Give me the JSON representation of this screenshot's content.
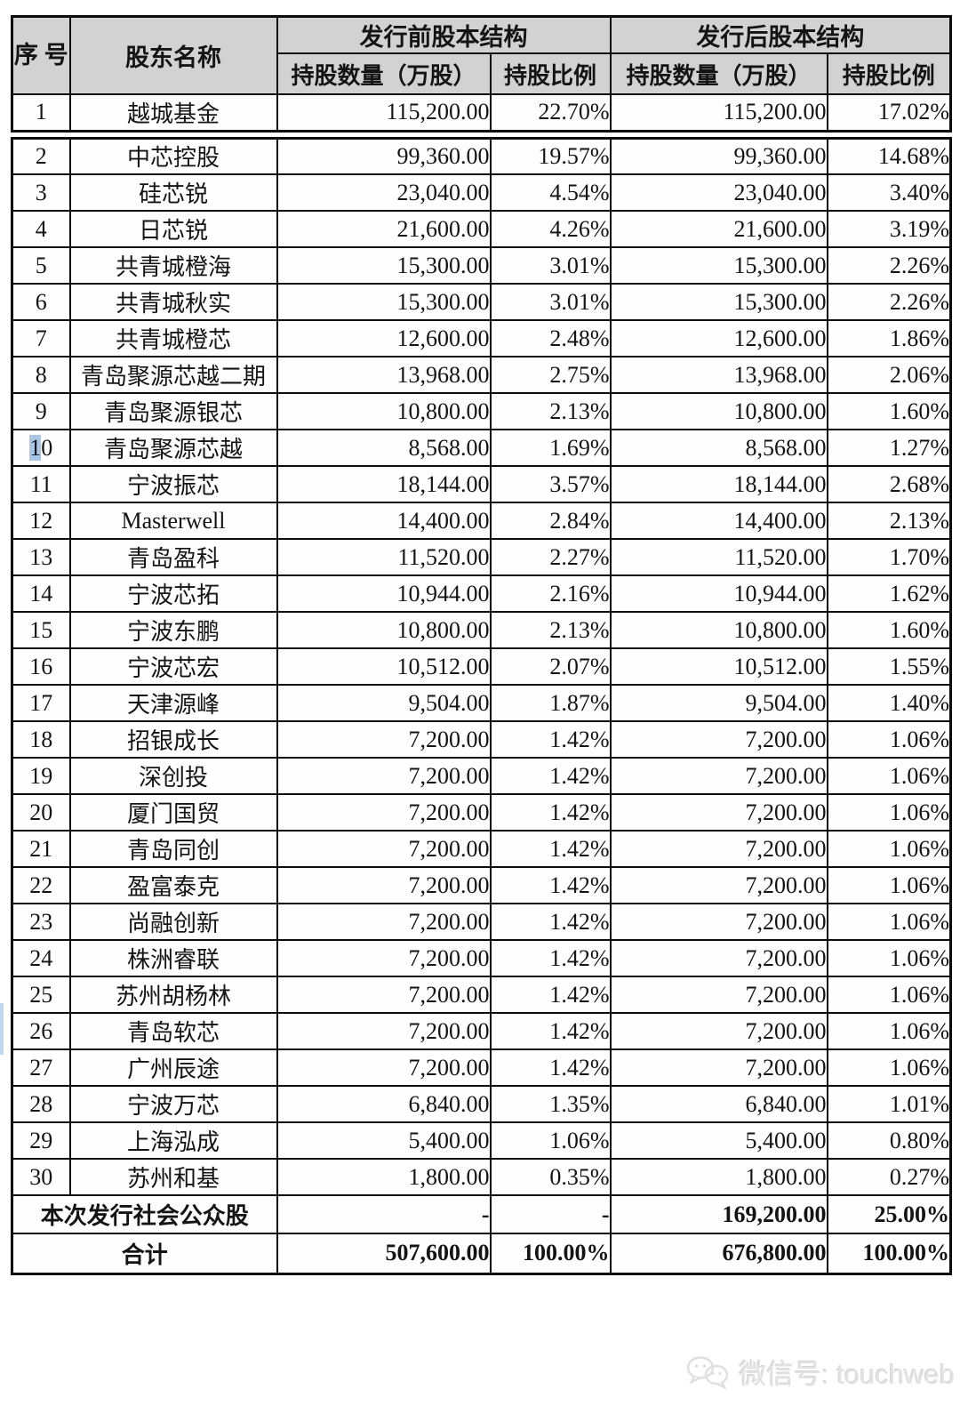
{
  "colors": {
    "header_bg": "#d2d2d2",
    "border": "#0c0c0c",
    "selection_highlight": "#a9c6e6",
    "watermark_text_color": "#e2e2e2"
  },
  "table": {
    "header": {
      "index": "序\n号",
      "shareholder": "股东名称",
      "pre_group": "发行前股本结构",
      "post_group": "发行后股本结构",
      "qty": "持股数量（万股）",
      "pct": "持股比例"
    },
    "rows": [
      {
        "no": "1",
        "name": "越城基金",
        "pre_qty": "115,200.00",
        "pre_pct": "22.70%",
        "post_qty": "115,200.00",
        "post_pct": "17.02%"
      },
      {
        "no": "2",
        "name": "中芯控股",
        "pre_qty": "99,360.00",
        "pre_pct": "19.57%",
        "post_qty": "99,360.00",
        "post_pct": "14.68%"
      },
      {
        "no": "3",
        "name": "硅芯锐",
        "pre_qty": "23,040.00",
        "pre_pct": "4.54%",
        "post_qty": "23,040.00",
        "post_pct": "3.40%"
      },
      {
        "no": "4",
        "name": "日芯锐",
        "pre_qty": "21,600.00",
        "pre_pct": "4.26%",
        "post_qty": "21,600.00",
        "post_pct": "3.19%"
      },
      {
        "no": "5",
        "name": "共青城橙海",
        "pre_qty": "15,300.00",
        "pre_pct": "3.01%",
        "post_qty": "15,300.00",
        "post_pct": "2.26%"
      },
      {
        "no": "6",
        "name": "共青城秋实",
        "pre_qty": "15,300.00",
        "pre_pct": "3.01%",
        "post_qty": "15,300.00",
        "post_pct": "2.26%"
      },
      {
        "no": "7",
        "name": "共青城橙芯",
        "pre_qty": "12,600.00",
        "pre_pct": "2.48%",
        "post_qty": "12,600.00",
        "post_pct": "1.86%"
      },
      {
        "no": "8",
        "name": "青岛聚源芯越二期",
        "pre_qty": "13,968.00",
        "pre_pct": "2.75%",
        "post_qty": "13,968.00",
        "post_pct": "2.06%"
      },
      {
        "no": "9",
        "name": "青岛聚源银芯",
        "pre_qty": "10,800.00",
        "pre_pct": "2.13%",
        "post_qty": "10,800.00",
        "post_pct": "1.60%"
      },
      {
        "no": "10",
        "name": "青岛聚源芯越",
        "pre_qty": "8,568.00",
        "pre_pct": "1.69%",
        "post_qty": "8,568.00",
        "post_pct": "1.27%",
        "highlight_first_char": true
      },
      {
        "no": "11",
        "name": "宁波振芯",
        "pre_qty": "18,144.00",
        "pre_pct": "3.57%",
        "post_qty": "18,144.00",
        "post_pct": "2.68%"
      },
      {
        "no": "12",
        "name": "Masterwell",
        "pre_qty": "14,400.00",
        "pre_pct": "2.84%",
        "post_qty": "14,400.00",
        "post_pct": "2.13%"
      },
      {
        "no": "13",
        "name": "青岛盈科",
        "pre_qty": "11,520.00",
        "pre_pct": "2.27%",
        "post_qty": "11,520.00",
        "post_pct": "1.70%"
      },
      {
        "no": "14",
        "name": "宁波芯拓",
        "pre_qty": "10,944.00",
        "pre_pct": "2.16%",
        "post_qty": "10,944.00",
        "post_pct": "1.62%"
      },
      {
        "no": "15",
        "name": "宁波东鹏",
        "pre_qty": "10,800.00",
        "pre_pct": "2.13%",
        "post_qty": "10,800.00",
        "post_pct": "1.60%"
      },
      {
        "no": "16",
        "name": "宁波芯宏",
        "pre_qty": "10,512.00",
        "pre_pct": "2.07%",
        "post_qty": "10,512.00",
        "post_pct": "1.55%"
      },
      {
        "no": "17",
        "name": "天津源峰",
        "pre_qty": "9,504.00",
        "pre_pct": "1.87%",
        "post_qty": "9,504.00",
        "post_pct": "1.40%"
      },
      {
        "no": "18",
        "name": "招银成长",
        "pre_qty": "7,200.00",
        "pre_pct": "1.42%",
        "post_qty": "7,200.00",
        "post_pct": "1.06%"
      },
      {
        "no": "19",
        "name": "深创投",
        "pre_qty": "7,200.00",
        "pre_pct": "1.42%",
        "post_qty": "7,200.00",
        "post_pct": "1.06%"
      },
      {
        "no": "20",
        "name": "厦门国贸",
        "pre_qty": "7,200.00",
        "pre_pct": "1.42%",
        "post_qty": "7,200.00",
        "post_pct": "1.06%"
      },
      {
        "no": "21",
        "name": "青岛同创",
        "pre_qty": "7,200.00",
        "pre_pct": "1.42%",
        "post_qty": "7,200.00",
        "post_pct": "1.06%"
      },
      {
        "no": "22",
        "name": "盈富泰克",
        "pre_qty": "7,200.00",
        "pre_pct": "1.42%",
        "post_qty": "7,200.00",
        "post_pct": "1.06%"
      },
      {
        "no": "23",
        "name": "尚融创新",
        "pre_qty": "7,200.00",
        "pre_pct": "1.42%",
        "post_qty": "7,200.00",
        "post_pct": "1.06%"
      },
      {
        "no": "24",
        "name": "株洲睿联",
        "pre_qty": "7,200.00",
        "pre_pct": "1.42%",
        "post_qty": "7,200.00",
        "post_pct": "1.06%"
      },
      {
        "no": "25",
        "name": "苏州胡杨林",
        "pre_qty": "7,200.00",
        "pre_pct": "1.42%",
        "post_qty": "7,200.00",
        "post_pct": "1.06%"
      },
      {
        "no": "26",
        "name": "青岛软芯",
        "pre_qty": "7,200.00",
        "pre_pct": "1.42%",
        "post_qty": "7,200.00",
        "post_pct": "1.06%"
      },
      {
        "no": "27",
        "name": "广州辰途",
        "pre_qty": "7,200.00",
        "pre_pct": "1.42%",
        "post_qty": "7,200.00",
        "post_pct": "1.06%"
      },
      {
        "no": "28",
        "name": "宁波万芯",
        "pre_qty": "6,840.00",
        "pre_pct": "1.35%",
        "post_qty": "6,840.00",
        "post_pct": "1.01%"
      },
      {
        "no": "29",
        "name": "上海泓成",
        "pre_qty": "5,400.00",
        "pre_pct": "1.06%",
        "post_qty": "5,400.00",
        "post_pct": "0.80%"
      },
      {
        "no": "30",
        "name": "苏州和基",
        "pre_qty": "1,800.00",
        "pre_pct": "0.35%",
        "post_qty": "1,800.00",
        "post_pct": "0.27%"
      }
    ],
    "footer_rows": [
      {
        "label": "本次发行社会公众股",
        "pre_qty": "-",
        "pre_pct": "-",
        "post_qty": "169,200.00",
        "post_pct": "25.00%",
        "bold": true
      },
      {
        "label": "合计",
        "pre_qty": "507,600.00",
        "pre_pct": "100.00%",
        "post_qty": "676,800.00",
        "post_pct": "100.00%",
        "bold": true
      }
    ]
  },
  "footer": {
    "watermark_text": "微信号: touchweb",
    "watermark_icon": "wechat-icon"
  }
}
